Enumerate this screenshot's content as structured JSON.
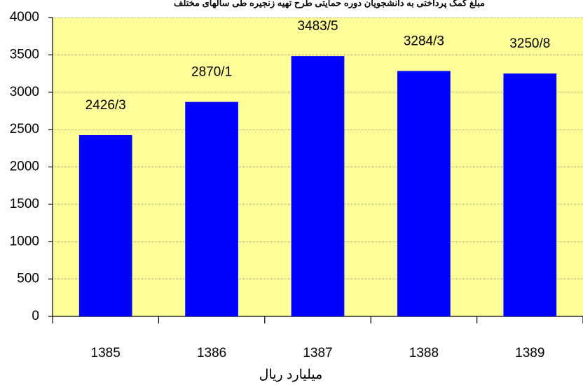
{
  "chart_data": {
    "type": "bar",
    "title": "مبلغ کمک پرداختی به دانشجویان دوره حمایتی طرح تهیه زنجیره طی سالهای مختلف",
    "x_label": "میلیارد ریال",
    "categories": [
      "1385",
      "1386",
      "1387",
      "1388",
      "1389"
    ],
    "values": [
      2426.3,
      2870.1,
      3483.5,
      3284.3,
      3250.8
    ],
    "value_labels": [
      "2426/3",
      "2870/1",
      "3483/5",
      "3284/3",
      "3250/8"
    ],
    "color": "#0000ff",
    "plot_background": "#ffff99",
    "ylim": [
      0,
      4000
    ],
    "yticks": [
      0,
      500,
      1000,
      1500,
      2000,
      2500,
      3000,
      3500,
      4000
    ],
    "grid": true
  }
}
